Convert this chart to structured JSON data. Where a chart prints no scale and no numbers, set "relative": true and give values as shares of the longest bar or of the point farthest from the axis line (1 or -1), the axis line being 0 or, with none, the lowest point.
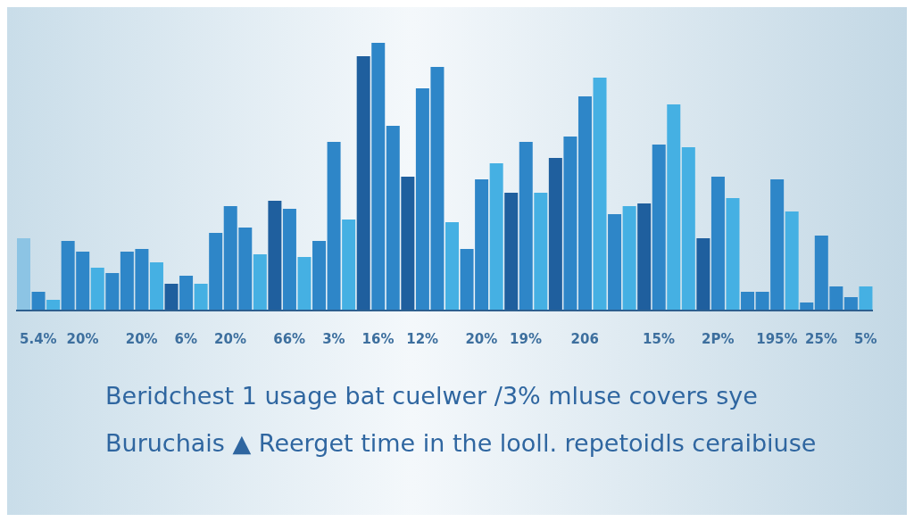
{
  "chart_data": {
    "type": "bar",
    "relative": true,
    "categories": [
      null,
      "5.4%",
      null,
      null,
      "20%",
      null,
      null,
      null,
      "20%",
      null,
      null,
      "6%",
      null,
      null,
      "20%",
      null,
      null,
      null,
      "66%",
      null,
      null,
      "3%",
      null,
      null,
      "16%",
      null,
      null,
      "12%",
      null,
      null,
      null,
      "20%",
      null,
      null,
      "19%",
      null,
      null,
      null,
      "206",
      null,
      null,
      null,
      null,
      "15%",
      null,
      null,
      null,
      "2P%",
      null,
      null,
      null,
      "195%",
      null,
      null,
      "25%",
      null,
      null,
      "5%"
    ],
    "values": [
      0.27,
      0.07,
      0.04,
      0.26,
      0.22,
      0.16,
      0.14,
      0.22,
      0.23,
      0.18,
      0.1,
      0.13,
      0.1,
      0.29,
      0.39,
      0.31,
      0.21,
      0.41,
      0.38,
      0.2,
      0.26,
      0.63,
      0.34,
      0.95,
      1,
      0.69,
      0.5,
      0.83,
      0.91,
      0.33,
      0.23,
      0.49,
      0.55,
      0.44,
      0.63,
      0.44,
      0.57,
      0.65,
      0.8,
      0.87,
      0.36,
      0.39,
      0.4,
      0.62,
      0.77,
      0.61,
      0.27,
      0.5,
      0.42,
      0.07,
      0.07,
      0.49,
      0.37,
      0.03,
      0.28,
      0.09,
      0.05,
      0.09
    ],
    "colors": [
      "#8cc4e4",
      "#2e86c8",
      "#45b0e3",
      "#2e86c8",
      "#2e86c8",
      "#45b0e3",
      "#2e86c8",
      "#2e86c8",
      "#2e86c8",
      "#45b0e3",
      "#1f5f9e",
      "#2e86c8",
      "#45b0e3",
      "#2e86c8",
      "#2e86c8",
      "#2e86c8",
      "#45b0e3",
      "#1f5f9e",
      "#2e86c8",
      "#45b0e3",
      "#2e86c8",
      "#2e86c8",
      "#45b0e3",
      "#1f5f9e",
      "#2e86c8",
      "#2e86c8",
      "#1f5f9e",
      "#2e86c8",
      "#2e86c8",
      "#45b0e3",
      "#2e86c8",
      "#2e86c8",
      "#45b0e3",
      "#1f5f9e",
      "#2e86c8",
      "#45b0e3",
      "#1f5f9e",
      "#2e86c8",
      "#2e86c8",
      "#45b0e3",
      "#2e86c8",
      "#45b0e3",
      "#1f5f9e",
      "#2e86c8",
      "#45b0e3",
      "#45b0e3",
      "#1f5f9e",
      "#2e86c8",
      "#45b0e3",
      "#2e86c8",
      "#2e86c8",
      "#2e86c8",
      "#45b0e3",
      "#2e86c8",
      "#2e86c8",
      "#2e86c8",
      "#2e86c8",
      "#45b0e3"
    ],
    "annotations": [
      "Beridchest 1 usage bat cuelwer /3% mluse covers sye",
      "Buruchais ▲ Reerget time in the looll. repetoidls ceraibiuse"
    ]
  }
}
